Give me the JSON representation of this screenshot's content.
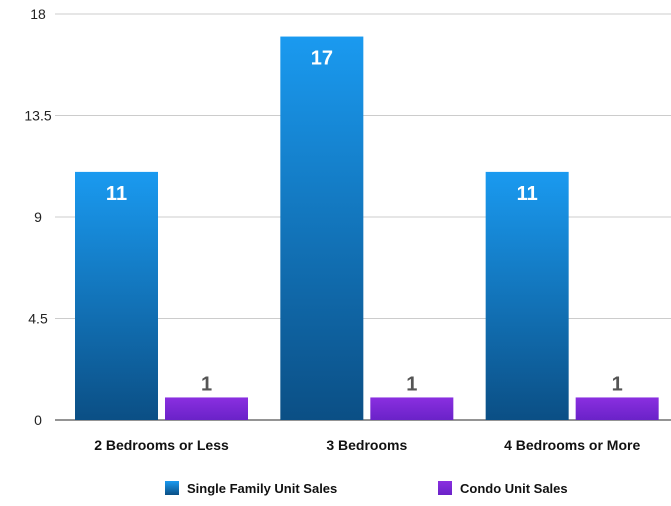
{
  "chart_data": {
    "type": "bar",
    "categories": [
      "2 Bedrooms or Less",
      "3 Bedrooms",
      "4 Bedrooms or More"
    ],
    "series": [
      {
        "name": "Single Family Unit Sales",
        "values": [
          11,
          17,
          11
        ],
        "color": "#1a9af0",
        "color_dark": "#0b4f85"
      },
      {
        "name": "Condo Unit Sales",
        "values": [
          1,
          1,
          1
        ],
        "color": "#8a2fe0",
        "color_dark": "#6a22c8"
      }
    ],
    "y_ticks": [
      "0",
      "4.5",
      "9",
      "13.5",
      "18"
    ],
    "ylim": [
      0,
      18
    ],
    "grid": true,
    "legend_position": "bottom",
    "data_labels": true,
    "title": "",
    "xlabel": "",
    "ylabel": ""
  }
}
